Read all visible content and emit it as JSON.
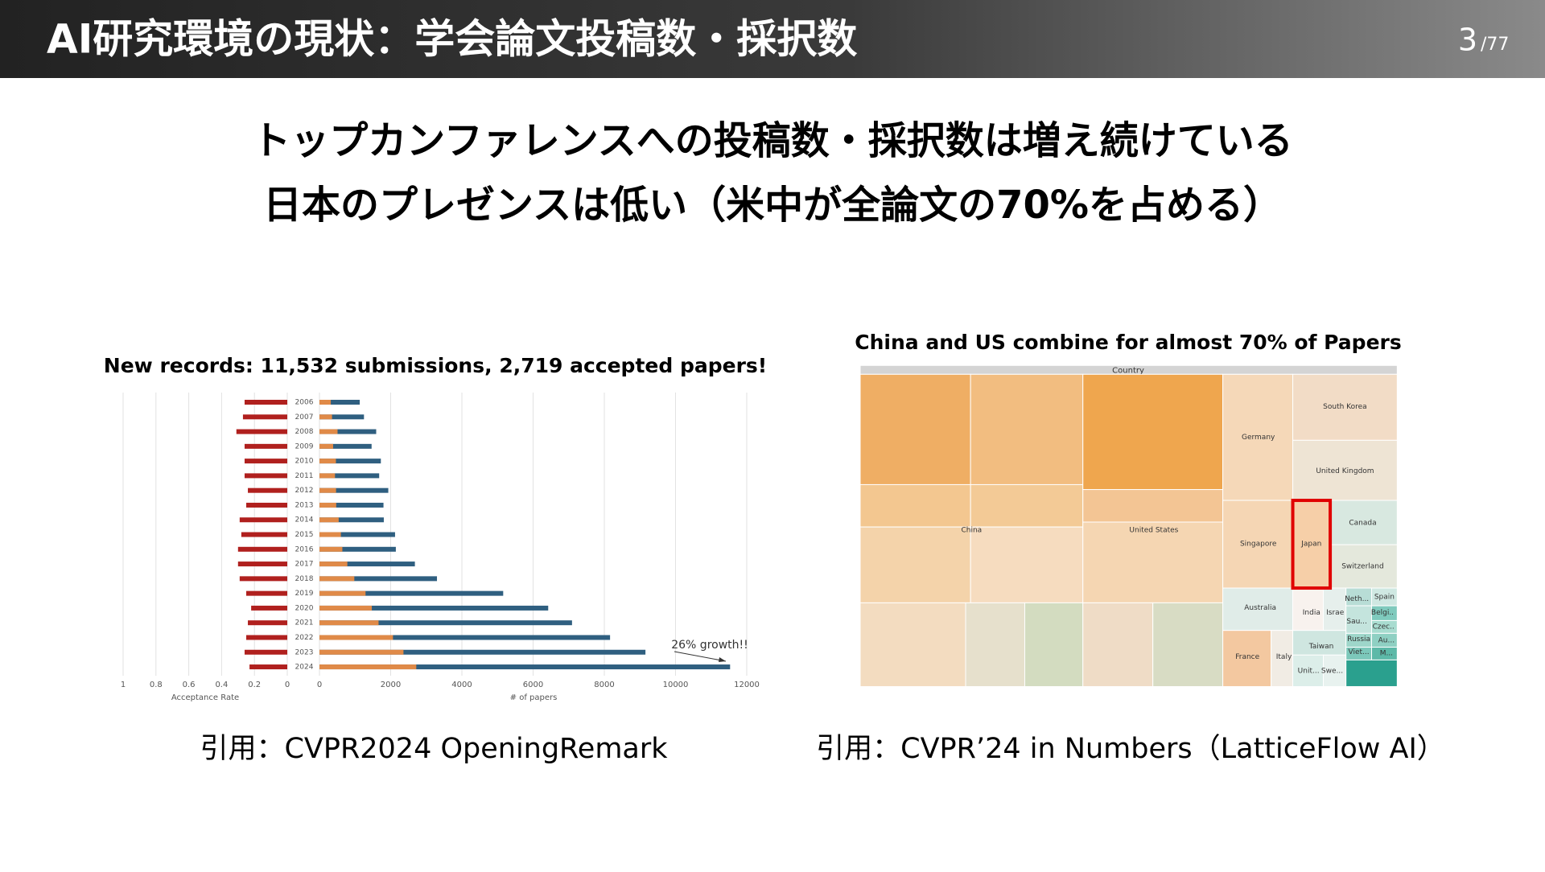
{
  "header": {
    "title": "AI研究環境の現状：学会論文投稿数・採択数",
    "page": "3",
    "total": "/77"
  },
  "headline": [
    "トップカンファレンスへの投稿数・採択数は増え続けている",
    "日本のプレゼンスは低い（米中が全論文の70%を占める）"
  ],
  "chart_data": {
    "type": "bar",
    "orientation": "horizontal",
    "title": "New records: 11,532 submissions, 2,719 accepted papers!",
    "categories": [
      "2006",
      "2007",
      "2008",
      "2009",
      "2010",
      "2011",
      "2012",
      "2013",
      "2014",
      "2015",
      "2016",
      "2017",
      "2018",
      "2019",
      "2020",
      "2021",
      "2022",
      "2023",
      "2024"
    ],
    "series": [
      {
        "color": "#b0201e",
        "axis": "x_left",
        "values": [
          0.26,
          0.27,
          0.31,
          0.26,
          0.26,
          0.26,
          0.24,
          0.25,
          0.29,
          0.28,
          0.3,
          0.3,
          0.29,
          0.25,
          0.22,
          0.24,
          0.25,
          0.26,
          0.23
        ]
      },
      {
        "color": "#2f5f80",
        "values": [
          1131,
          1250,
          1593,
          1464,
          1724,
          1677,
          1933,
          1798,
          1807,
          2123,
          2145,
          2680,
          3300,
          5160,
          6424,
          7093,
          8161,
          9155,
          11532
        ]
      },
      {
        "color": "#e08a48",
        "values": [
          318,
          353,
          508,
          384,
          462,
          436,
          466,
          471,
          540,
          602,
          643,
          783,
          979,
          1294,
          1470,
          1660,
          2064,
          2359,
          2719
        ]
      }
    ],
    "xlim_left": [
      1,
      0
    ],
    "xticks_left": [
      1,
      0.8,
      0.6,
      0.4,
      0.2,
      0
    ],
    "xlabel_left": "Acceptance Rate",
    "xlim": [
      0,
      12000
    ],
    "xticks": [
      0,
      2000,
      4000,
      6000,
      8000,
      10000,
      12000
    ],
    "xlabel": "# of papers",
    "grid": true,
    "annotation": "26% growth!!"
  },
  "treemap": {
    "title": "China and US combine for almost 70% of Papers",
    "header": "Country",
    "labels": [
      "China",
      "United States",
      "Germany",
      "South Korea",
      "United Kingdom",
      "Singapore",
      "Japan",
      "Canada",
      "Switzerland",
      "Australia",
      "India",
      "Israe",
      "Neth...",
      "Spain",
      "Belgi..",
      "Sau...",
      "Czec..",
      "Russia",
      "Au...",
      "France",
      "Italy",
      "Taiwan",
      "Viet...",
      "M...",
      "Unit...",
      "Swe..."
    ]
  },
  "captions": [
    "引用：CVPR2024 OpeningRemark",
    "引用：CVPR’24 in Numbers（LatticeFlow AI）"
  ]
}
